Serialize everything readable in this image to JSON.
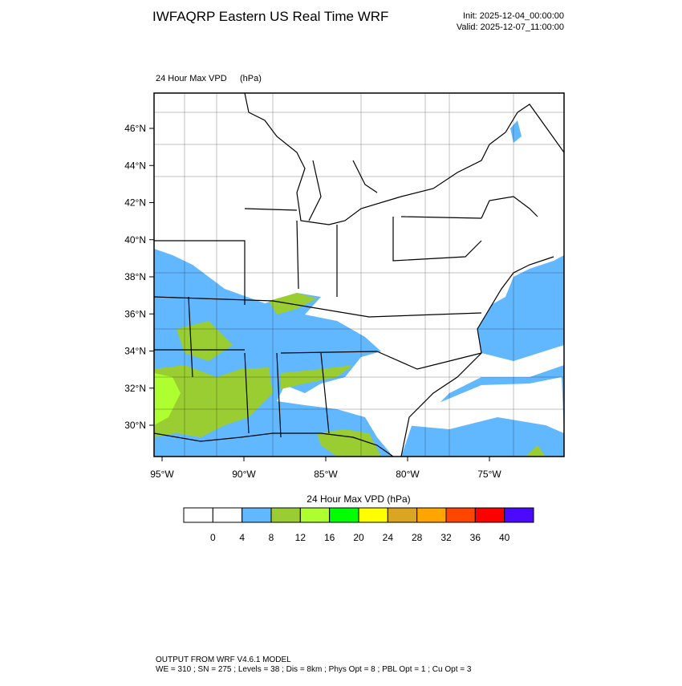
{
  "header": {
    "title": "IWFAQRP Eastern US Real Time WRF",
    "init": "Init: 2025-12-04_00:00:00",
    "valid": "Valid: 2025-12-07_11:00:00"
  },
  "map": {
    "field_label": "24 Hour Max VPD",
    "units": "(hPa)",
    "lat_labels": [
      "46°N",
      "44°N",
      "42°N",
      "40°N",
      "38°N",
      "36°N",
      "34°N",
      "32°N",
      "30°N"
    ],
    "lon_labels": [
      "95°W",
      "90°W",
      "85°W",
      "80°W",
      "75°W"
    ]
  },
  "colorbar": {
    "title": "24 Hour Max VPD  (hPa)",
    "colors": [
      "#ffffff",
      "#ffffff",
      "#62b8ff",
      "#9acd32",
      "#adff2f",
      "#00ff00",
      "#ffff00",
      "#daa520",
      "#ffa500",
      "#ff4500",
      "#ff0000",
      "#4b0aff"
    ],
    "labels": [
      0,
      4,
      8,
      12,
      16,
      20,
      24,
      28,
      32,
      36,
      40
    ]
  },
  "footer": {
    "line1": "OUTPUT FROM WRF V4.6.1 MODEL",
    "line2": "WE = 310 ; SN = 275 ; Levels = 38 ; Dis = 8km ; Phys Opt = 8 ; PBL Opt = 1 ; Cu Opt = 3"
  }
}
